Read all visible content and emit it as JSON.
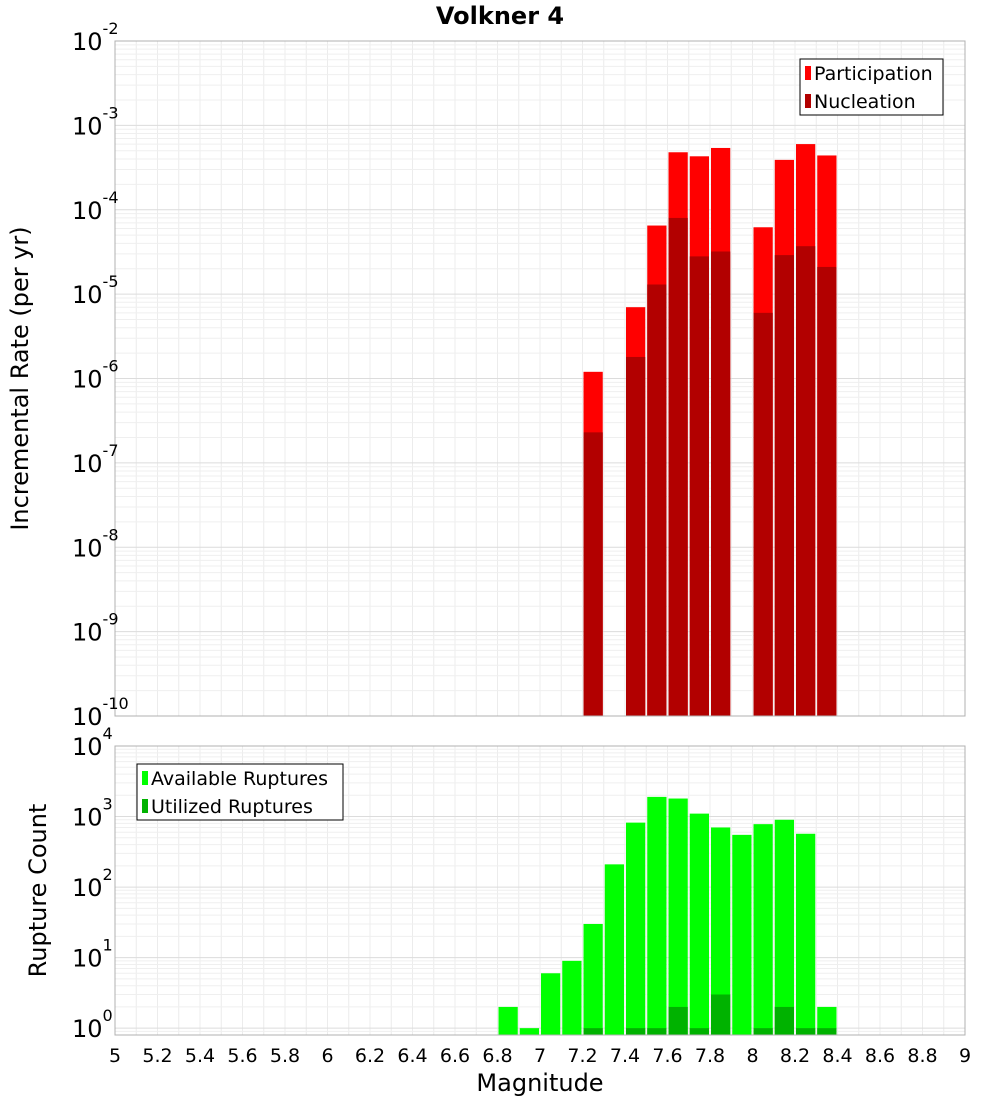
{
  "chart_data": {
    "type": "bar",
    "title": "Volkner 4",
    "xlabel": "Magnitude",
    "x_ticks": [
      "5",
      "5.2",
      "5.4",
      "5.6",
      "5.8",
      "6",
      "6.2",
      "6.4",
      "6.6",
      "6.8",
      "7",
      "7.2",
      "7.4",
      "7.6",
      "7.8",
      "8",
      "8.2",
      "8.4",
      "8.6",
      "8.8",
      "9"
    ],
    "xlim": [
      5,
      9
    ],
    "bar_width": 0.1,
    "panels": [
      {
        "id": "rate",
        "ylabel": "Incremental Rate (per yr)",
        "yscale": "log",
        "ylim": [
          1e-10,
          0.01
        ],
        "y_ticks": [
          {
            "base": "10",
            "exp": "-10"
          },
          {
            "base": "10",
            "exp": "-9"
          },
          {
            "base": "10",
            "exp": "-8"
          },
          {
            "base": "10",
            "exp": "-7"
          },
          {
            "base": "10",
            "exp": "-6"
          },
          {
            "base": "10",
            "exp": "-5"
          },
          {
            "base": "10",
            "exp": "-4"
          },
          {
            "base": "10",
            "exp": "-3"
          },
          {
            "base": "10",
            "exp": "-2"
          }
        ],
        "legend_position": "top-right",
        "series": [
          {
            "name": "Participation",
            "color": "#ff0000",
            "x": [
              7.25,
              7.45,
              7.55,
              7.65,
              7.75,
              7.85,
              8.05,
              8.15,
              8.25,
              8.35
            ],
            "y": [
              1.2e-06,
              7e-06,
              6.5e-05,
              0.00048,
              0.00043,
              0.00054,
              6.2e-05,
              0.00039,
              0.0006,
              0.00044
            ]
          },
          {
            "name": "Nucleation",
            "color": "#b20000",
            "x": [
              7.25,
              7.45,
              7.55,
              7.65,
              7.75,
              7.85,
              8.05,
              8.15,
              8.25,
              8.35
            ],
            "y": [
              2.3e-07,
              1.8e-06,
              1.3e-05,
              8e-05,
              2.8e-05,
              3.2e-05,
              6e-06,
              2.9e-05,
              3.7e-05,
              2.1e-05
            ]
          }
        ]
      },
      {
        "id": "count",
        "ylabel": "Rupture Count",
        "yscale": "log",
        "ylim": [
          0.8,
          10000
        ],
        "y_ticks": [
          {
            "base": "10",
            "exp": "0"
          },
          {
            "base": "10",
            "exp": "1"
          },
          {
            "base": "10",
            "exp": "2"
          },
          {
            "base": "10",
            "exp": "3"
          },
          {
            "base": "10",
            "exp": "4"
          }
        ],
        "legend_position": "top-left",
        "series": [
          {
            "name": "Available Ruptures",
            "color": "#00ff00",
            "x": [
              6.85,
              6.95,
              7.05,
              7.15,
              7.25,
              7.35,
              7.45,
              7.55,
              7.65,
              7.75,
              7.85,
              7.95,
              8.05,
              8.15,
              8.25,
              8.35
            ],
            "y": [
              2,
              1,
              6,
              9,
              30,
              210,
              820,
              1900,
              1800,
              1100,
              700,
              550,
              780,
              900,
              570,
              2
            ]
          },
          {
            "name": "Utilized Ruptures",
            "color": "#00b200",
            "x": [
              7.25,
              7.45,
              7.55,
              7.65,
              7.75,
              7.85,
              8.05,
              8.15,
              8.25,
              8.35
            ],
            "y": [
              1,
              1,
              1,
              2,
              1,
              3,
              1,
              2,
              1,
              1
            ]
          }
        ]
      }
    ]
  }
}
